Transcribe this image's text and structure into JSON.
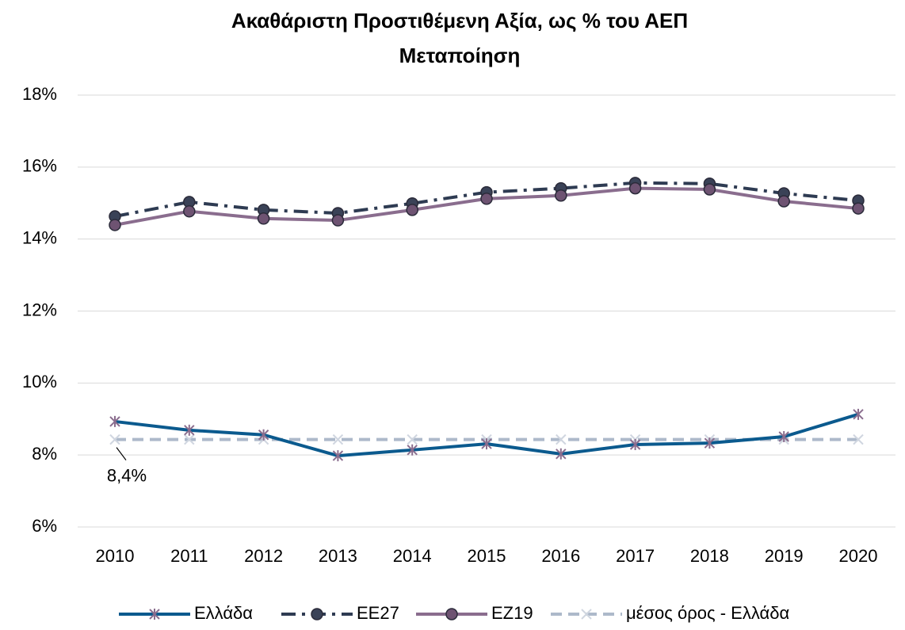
{
  "chart_data": {
    "type": "line",
    "title": "Ακαθάριστη Προστιθέμενη Αξία, ως % του ΑΕΠ",
    "subtitle": "Μεταποίηση",
    "categories": [
      "2010",
      "2011",
      "2012",
      "2013",
      "2014",
      "2015",
      "2016",
      "2017",
      "2018",
      "2019",
      "2020"
    ],
    "ylim": [
      6,
      18
    ],
    "yticks": [
      {
        "value": 6,
        "label": "6%"
      },
      {
        "value": 8,
        "label": "8%"
      },
      {
        "value": 10,
        "label": "10%"
      },
      {
        "value": 12,
        "label": "12%"
      },
      {
        "value": 14,
        "label": "14%"
      },
      {
        "value": 16,
        "label": "16%"
      },
      {
        "value": 18,
        "label": "18%"
      }
    ],
    "grid": true,
    "legend": "bottom",
    "series": [
      {
        "name": "Ελλάδα",
        "color": "#0b5a8e",
        "dash": "solid",
        "marker": "star",
        "marker_color": "#8a6d8e",
        "values": [
          8.93,
          8.69,
          8.56,
          7.98,
          8.14,
          8.31,
          8.03,
          8.29,
          8.33,
          8.51,
          9.13
        ]
      },
      {
        "name": "ΕΕ27",
        "color": "#2e3b52",
        "dash": "dashdot",
        "marker": "circle",
        "marker_color": "#3a4257",
        "values": [
          14.63,
          15.03,
          14.81,
          14.72,
          14.99,
          15.3,
          15.41,
          15.56,
          15.54,
          15.27,
          15.07
        ]
      },
      {
        "name": "ΕΖ19",
        "color": "#8a6d8e",
        "dash": "solid",
        "marker": "circle",
        "marker_color": "#6e5372",
        "values": [
          14.39,
          14.77,
          14.57,
          14.52,
          14.81,
          15.12,
          15.21,
          15.41,
          15.38,
          15.05,
          14.85
        ]
      },
      {
        "name": "μέσος όρος - Ελλάδα",
        "color": "#adb9ca",
        "dash": "dash",
        "marker": "x",
        "marker_color": "#d0d6e0",
        "values": [
          8.43,
          8.43,
          8.43,
          8.43,
          8.43,
          8.43,
          8.43,
          8.43,
          8.43,
          8.43,
          8.43
        ],
        "value_labels": [
          "8,4%",
          null,
          null,
          null,
          null,
          null,
          null,
          null,
          null,
          null,
          null
        ]
      }
    ]
  }
}
